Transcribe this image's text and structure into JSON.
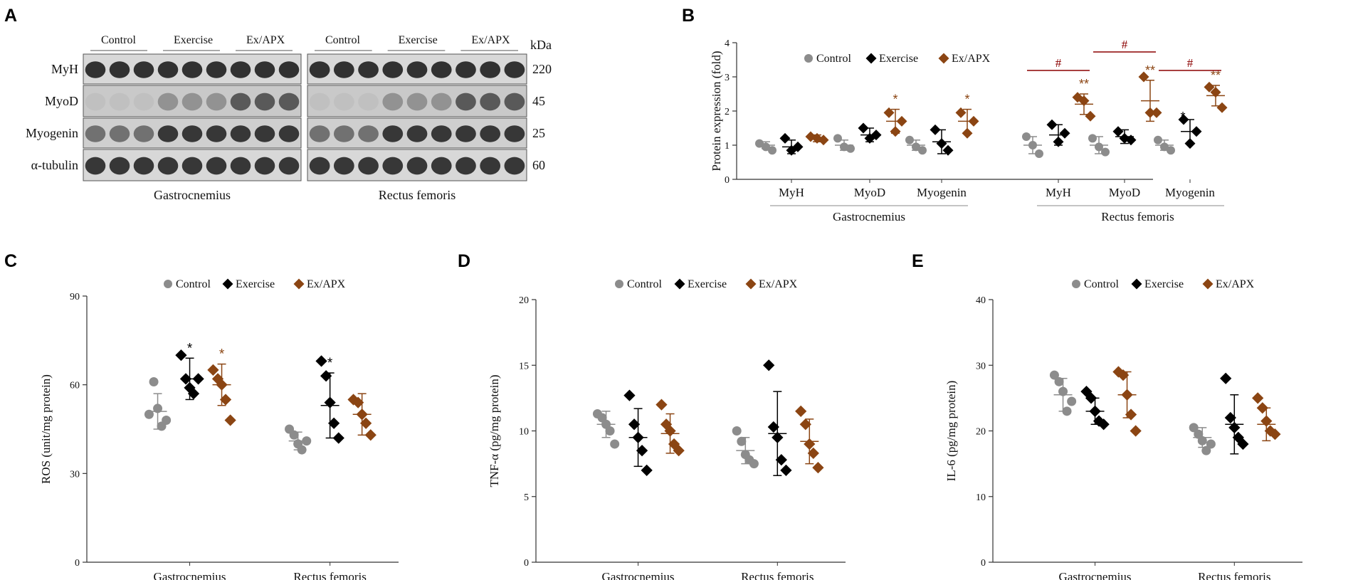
{
  "colors": {
    "control": "#8c8c8c",
    "exercise": "#000000",
    "exapx": "#8b4513",
    "axis": "#333333",
    "hash": "#8b0000",
    "bracket": "#a0a0a0"
  },
  "panels": {
    "A": "A",
    "B": "B",
    "C": "C",
    "D": "D",
    "E": "E"
  },
  "legend": [
    "Control",
    "Exercise",
    "Ex/APX"
  ],
  "blot": {
    "kda_label": "kDa",
    "conditions": [
      "Control",
      "Exercise",
      "Ex/APX"
    ],
    "proteins": [
      "MyH",
      "MyoD",
      "Myogenin",
      "α-tubulin"
    ],
    "weights": [
      "220",
      "45",
      "25",
      "60"
    ],
    "tissues": [
      "Gastrocnemius",
      "Rectus femoris"
    ]
  },
  "chart_data": [
    {
      "panel": "B",
      "type": "scatter",
      "title": "",
      "ylabel": "Protein expression (fold)",
      "ylim": [
        0,
        4
      ],
      "yticks": [
        "0",
        "1",
        "2",
        "3",
        "4"
      ],
      "groups": [
        {
          "tissue": "Gastrocnemius",
          "categories": [
            "MyH",
            "MyoD",
            "Myogenin"
          ]
        },
        {
          "tissue": "Rectus femoris",
          "categories": [
            "MyH",
            "MyoD",
            "Myogenin"
          ]
        }
      ],
      "series": [
        {
          "name": "Control",
          "points": [
            [
              1.05,
              0.95,
              0.85
            ],
            [
              1.2,
              0.95,
              0.9
            ],
            [
              1.15,
              0.95,
              0.85
            ],
            [
              1.25,
              1.0,
              0.75
            ],
            [
              1.2,
              0.95,
              0.8
            ],
            [
              1.15,
              0.95,
              0.85
            ]
          ],
          "mean": [
            1.0,
            1.0,
            1.0,
            1.0,
            1.0,
            1.0
          ],
          "sd": [
            0.1,
            0.15,
            0.15,
            0.25,
            0.25,
            0.15
          ]
        },
        {
          "name": "Exercise",
          "points": [
            [
              1.2,
              0.85,
              0.95
            ],
            [
              1.5,
              1.2,
              1.3
            ],
            [
              1.45,
              1.05,
              0.85
            ],
            [
              1.6,
              1.1,
              1.35
            ],
            [
              1.4,
              1.2,
              1.15
            ],
            [
              1.75,
              1.05,
              1.4
            ]
          ],
          "mean": [
            0.95,
            1.3,
            1.1,
            1.3,
            1.25,
            1.4
          ],
          "sd": [
            0.2,
            0.2,
            0.35,
            0.3,
            0.2,
            0.35
          ]
        },
        {
          "name": "Ex/APX",
          "points": [
            [
              1.25,
              1.2,
              1.15
            ],
            [
              1.95,
              1.4,
              1.7
            ],
            [
              1.95,
              1.35,
              1.7
            ],
            [
              2.4,
              2.3,
              1.85
            ],
            [
              3.0,
              1.95,
              1.95
            ],
            [
              2.7,
              2.55,
              2.1
            ]
          ],
          "mean": [
            1.2,
            1.7,
            1.7,
            2.2,
            2.3,
            2.45
          ],
          "sd": [
            0.1,
            0.35,
            0.35,
            0.3,
            0.6,
            0.3
          ]
        }
      ],
      "annotations": {
        "exapx_star": [
          "",
          "*",
          "*",
          "**",
          "**",
          "**"
        ],
        "exercise_star": [
          "",
          "",
          "",
          "",
          "",
          "*"
        ],
        "hash": [
          "",
          "",
          "",
          "#",
          "#",
          "#"
        ]
      }
    },
    {
      "panel": "C",
      "type": "scatter",
      "ylabel": "ROS (unit/mg  protein)",
      "ylim": [
        0,
        90
      ],
      "yticks": [
        "0",
        "30",
        "60",
        "90"
      ],
      "categories": [
        "Gastrocnemius",
        "Rectus femoris"
      ],
      "series": [
        {
          "name": "Control",
          "points": [
            [
              50,
              61,
              52,
              46,
              48
            ],
            [
              45,
              43,
              40,
              38,
              41
            ]
          ],
          "mean": [
            51,
            41
          ],
          "sd": [
            6,
            3
          ]
        },
        {
          "name": "Exercise",
          "points": [
            [
              70,
              62,
              59,
              57,
              62
            ],
            [
              68,
              63,
              54,
              47,
              42
            ]
          ],
          "mean": [
            62,
            53
          ],
          "sd": [
            7,
            11
          ]
        },
        {
          "name": "Ex/APX",
          "points": [
            [
              65,
              62,
              60,
              55,
              48
            ],
            [
              55,
              54,
              50,
              47,
              43
            ]
          ],
          "mean": [
            60,
            50
          ],
          "sd": [
            7,
            7
          ]
        }
      ],
      "annotations": {
        "exercise_star": [
          "*",
          "*"
        ],
        "exapx_star": [
          "*",
          ""
        ]
      }
    },
    {
      "panel": "D",
      "type": "scatter",
      "ylabel": "TNF-α (pg/mg  protein)",
      "ylim": [
        0,
        20
      ],
      "yticks": [
        "0",
        "5",
        "10",
        "15",
        "20"
      ],
      "categories": [
        "Gastrocnemius",
        "Rectus femoris"
      ],
      "series": [
        {
          "name": "Control",
          "points": [
            [
              11.3,
              11.0,
              10.5,
              10.0,
              9.0
            ],
            [
              10.0,
              9.2,
              8.2,
              7.8,
              7.5
            ]
          ],
          "mean": [
            10.5,
            8.5
          ],
          "sd": [
            1.0,
            1.0
          ]
        },
        {
          "name": "Exercise",
          "points": [
            [
              12.7,
              10.5,
              9.5,
              8.5,
              7.0
            ],
            [
              15.0,
              10.3,
              9.5,
              7.8,
              7.0
            ]
          ],
          "mean": [
            9.5,
            9.8
          ],
          "sd": [
            2.2,
            3.2
          ]
        },
        {
          "name": "Ex/APX",
          "points": [
            [
              12.0,
              10.5,
              10.0,
              9.0,
              8.5
            ],
            [
              11.5,
              10.5,
              9.0,
              8.3,
              7.2
            ]
          ],
          "mean": [
            9.8,
            9.2
          ],
          "sd": [
            1.5,
            1.7
          ]
        }
      ],
      "annotations": {}
    },
    {
      "panel": "E",
      "type": "scatter",
      "ylabel": "IL-6 (pg/mg  protein)",
      "ylim": [
        0,
        40
      ],
      "yticks": [
        "0",
        "10",
        "20",
        "30",
        "40"
      ],
      "categories": [
        "Gastrocnemius",
        "Rectus femoris"
      ],
      "series": [
        {
          "name": "Control",
          "points": [
            [
              28.5,
              27.5,
              26.0,
              23.0,
              24.5
            ],
            [
              20.5,
              19.5,
              18.5,
              17.0,
              18.0
            ]
          ],
          "mean": [
            25.5,
            19.0
          ],
          "sd": [
            2.5,
            1.5
          ]
        },
        {
          "name": "Exercise",
          "points": [
            [
              26.0,
              25.0,
              23.0,
              21.5,
              21.0
            ],
            [
              28.0,
              22.0,
              20.5,
              19.0,
              18.0
            ]
          ],
          "mean": [
            23.0,
            21.0
          ],
          "sd": [
            2.0,
            4.5
          ]
        },
        {
          "name": "Ex/APX",
          "points": [
            [
              29.0,
              28.5,
              25.5,
              22.5,
              20.0
            ],
            [
              25.0,
              23.5,
              21.5,
              20.0,
              19.5
            ]
          ],
          "mean": [
            25.5,
            21.0
          ],
          "sd": [
            3.5,
            2.5
          ]
        }
      ],
      "annotations": {}
    }
  ]
}
